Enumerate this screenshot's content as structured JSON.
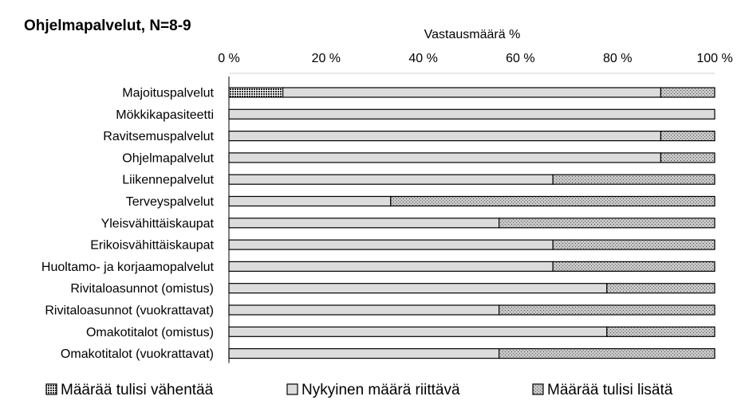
{
  "chart_data": {
    "type": "bar",
    "orientation": "horizontal",
    "stacked": true,
    "title": "Ohjelmapalvelut, N=8-9",
    "xlabel": "Vastausmäärä %",
    "ylabel": "",
    "xlim": [
      0,
      100
    ],
    "ticks": [
      "0 %",
      "20 %",
      "40 %",
      "60 %",
      "80 %",
      "100 %"
    ],
    "tick_values": [
      0,
      20,
      40,
      60,
      80,
      100
    ],
    "axis_position": "top",
    "legend_position": "bottom",
    "categories": [
      "Majoituspalvelut",
      "Mökkikapasiteetti",
      "Ravitsemuspalvelut",
      "Ohjelmapalvelut",
      "Liikennepalvelut",
      "Terveyspalvelut",
      "Yleisvähittäiskaupat",
      "Erikoisvähittäiskaupat",
      "Huoltamo- ja korjaamopalvelut",
      "Rivitaloasunnot (omistus)",
      "Rivitaloasunnot (vuokrattavat)",
      "Omakotitalot (omistus)",
      "Omakotitalot (vuokrattavat)"
    ],
    "series": [
      {
        "name": "Määrää tulisi vähentää",
        "pattern": "dense-dots",
        "color": "#555555",
        "values": [
          11.1,
          0,
          0,
          0,
          0,
          0,
          0,
          0,
          0,
          0,
          0,
          0,
          0
        ]
      },
      {
        "name": "Nykyinen määrä riittävä",
        "pattern": "solid",
        "color": "#d9d9d9",
        "values": [
          77.8,
          100,
          88.9,
          88.9,
          66.7,
          33.3,
          55.6,
          66.7,
          66.7,
          77.8,
          55.6,
          77.8,
          55.6
        ]
      },
      {
        "name": "Määrää tulisi lisätä",
        "pattern": "sparse-dots",
        "color": "#b3b3b3",
        "values": [
          11.1,
          0,
          11.1,
          11.1,
          33.3,
          66.7,
          44.4,
          33.3,
          33.3,
          22.2,
          44.4,
          22.2,
          44.4
        ]
      }
    ]
  }
}
